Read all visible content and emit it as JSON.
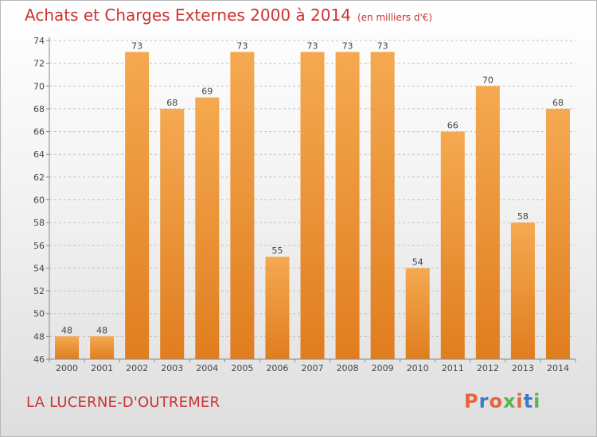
{
  "header": {
    "title": "Achats et Charges Externes 2000 à 2014",
    "unit": "(en milliers d'€)"
  },
  "footer": {
    "commune": "LA LUCERNE-D'OUTREMER",
    "logo": "Proxiti",
    "logo_colors": [
      "#e8643c",
      "#3d7ac8",
      "#e8643c",
      "#5ab64c",
      "#e8643c",
      "#3d7ac8",
      "#5ab64c"
    ]
  },
  "colors": {
    "bar_top": "#f5a950",
    "bar_bottom": "#e07d1f",
    "grid": "#c4c4c4",
    "text": "#444444",
    "title": "#cc3333"
  },
  "chart_data": {
    "type": "bar",
    "title": "Achats et Charges Externes 2000 à 2014",
    "subtitle": "(en milliers d'€)",
    "categories": [
      "2000",
      "2001",
      "2002",
      "2003",
      "2004",
      "2005",
      "2006",
      "2007",
      "2008",
      "2009",
      "2010",
      "2011",
      "2012",
      "2013",
      "2014"
    ],
    "values": [
      48,
      48,
      73,
      68,
      69,
      73,
      55,
      73,
      73,
      73,
      54,
      66,
      70,
      58,
      68
    ],
    "ylim": [
      46,
      74
    ],
    "yticks": [
      46,
      48,
      50,
      52,
      54,
      56,
      58,
      60,
      62,
      64,
      66,
      68,
      70,
      72,
      74
    ],
    "xlabel": "",
    "ylabel": "",
    "grid": true,
    "grid_style": "dashed-horizontal",
    "data_labels": true,
    "legend": "none"
  }
}
